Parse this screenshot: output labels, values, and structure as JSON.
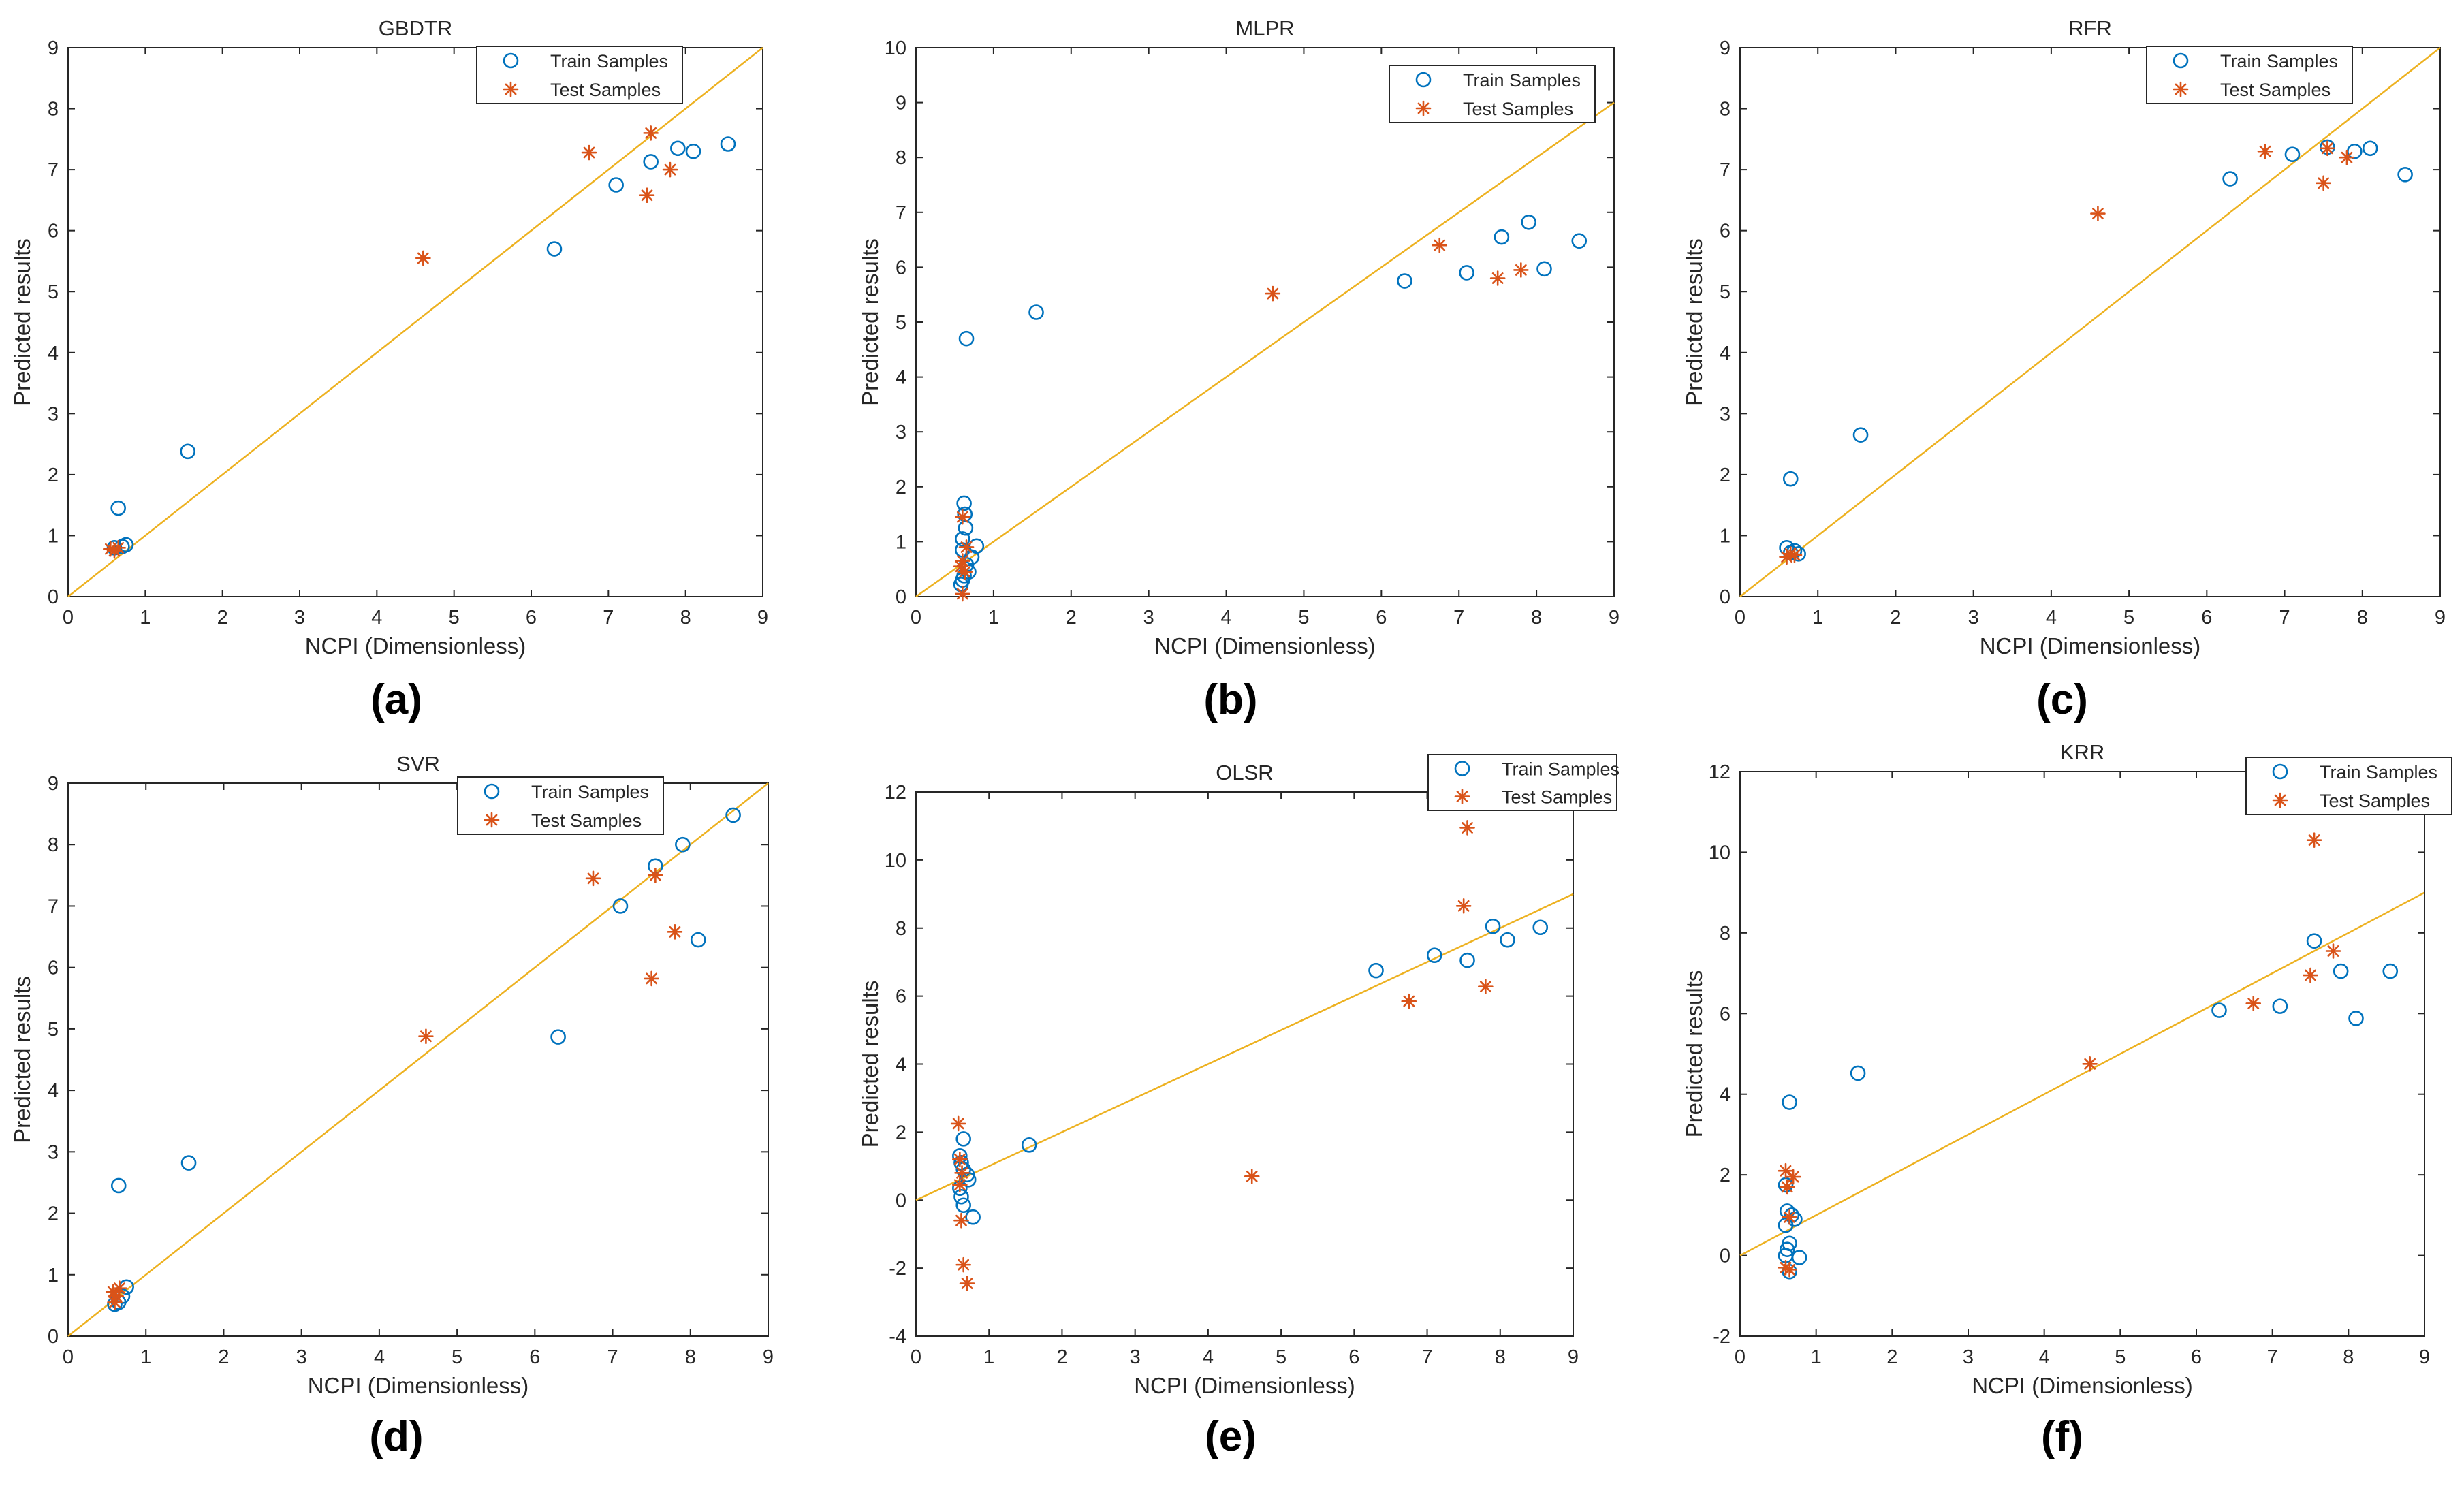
{
  "colors": {
    "train": "#0072BD",
    "test": "#D95319",
    "line": "#EDB120",
    "axis": "#262626"
  },
  "chart_data": [
    {
      "type": "scatter",
      "title": "GBDTR",
      "panel_label": "(a)",
      "xlabel": "NCPI (Dimensionless)",
      "ylabel": "Predicted results",
      "xlim": [
        0,
        9
      ],
      "ylim": [
        0,
        9
      ],
      "xticks": [
        0,
        1,
        2,
        3,
        4,
        5,
        6,
        7,
        8,
        9
      ],
      "yticks": [
        0,
        1,
        2,
        3,
        4,
        5,
        6,
        7,
        8,
        9
      ],
      "legend": [
        "Train Samples",
        "Test Samples"
      ],
      "reference_line": {
        "x": [
          0,
          9
        ],
        "y": [
          0,
          9
        ]
      },
      "series": [
        {
          "name": "Train Samples",
          "marker": "circle",
          "points": [
            [
              0.65,
              1.45
            ],
            [
              1.55,
              2.38
            ],
            [
              0.75,
              0.85
            ],
            [
              0.7,
              0.82
            ],
            [
              0.6,
              0.8
            ],
            [
              6.3,
              5.7
            ],
            [
              7.1,
              6.75
            ],
            [
              7.55,
              7.13
            ],
            [
              7.9,
              7.35
            ],
            [
              8.1,
              7.3
            ],
            [
              8.55,
              7.42
            ]
          ]
        },
        {
          "name": "Test Samples",
          "marker": "asterisk",
          "points": [
            [
              0.55,
              0.78
            ],
            [
              0.6,
              0.75
            ],
            [
              0.65,
              0.8
            ],
            [
              4.6,
              5.55
            ],
            [
              6.75,
              7.28
            ],
            [
              7.5,
              6.58
            ],
            [
              7.55,
              7.6
            ],
            [
              7.8,
              7.0
            ]
          ]
        }
      ]
    },
    {
      "type": "scatter",
      "title": "MLPR",
      "panel_label": "(b)",
      "xlabel": "NCPI (Dimensionless)",
      "ylabel": "Predicted results",
      "xlim": [
        0,
        9
      ],
      "ylim": [
        0,
        10
      ],
      "xticks": [
        0,
        1,
        2,
        3,
        4,
        5,
        6,
        7,
        8,
        9
      ],
      "yticks": [
        0,
        1,
        2,
        3,
        4,
        5,
        6,
        7,
        8,
        9,
        10
      ],
      "legend": [
        "Train Samples",
        "Test Samples"
      ],
      "reference_line": {
        "x": [
          0,
          9
        ],
        "y": [
          0,
          9
        ]
      },
      "series": [
        {
          "name": "Train Samples",
          "marker": "circle",
          "points": [
            [
              0.65,
              4.7
            ],
            [
              1.55,
              5.18
            ],
            [
              0.62,
              1.7
            ],
            [
              0.63,
              1.5
            ],
            [
              0.64,
              1.25
            ],
            [
              0.6,
              1.05
            ],
            [
              0.78,
              0.92
            ],
            [
              0.6,
              0.85
            ],
            [
              0.72,
              0.72
            ],
            [
              0.65,
              0.58
            ],
            [
              0.68,
              0.45
            ],
            [
              0.62,
              0.38
            ],
            [
              0.6,
              0.3
            ],
            [
              0.58,
              0.22
            ],
            [
              6.3,
              5.75
            ],
            [
              7.1,
              5.9
            ],
            [
              7.55,
              6.55
            ],
            [
              7.9,
              6.82
            ],
            [
              8.1,
              5.97
            ],
            [
              8.55,
              6.48
            ]
          ]
        },
        {
          "name": "Test Samples",
          "marker": "asterisk",
          "points": [
            [
              0.6,
              1.45
            ],
            [
              0.65,
              0.9
            ],
            [
              0.6,
              0.65
            ],
            [
              0.58,
              0.55
            ],
            [
              0.63,
              0.45
            ],
            [
              0.6,
              0.05
            ],
            [
              4.6,
              5.52
            ],
            [
              6.75,
              6.4
            ],
            [
              7.5,
              5.8
            ],
            [
              7.8,
              5.95
            ]
          ]
        }
      ]
    },
    {
      "type": "scatter",
      "title": "RFR",
      "panel_label": "(c)",
      "xlabel": "NCPI (Dimensionless)",
      "ylabel": "Predicted results",
      "xlim": [
        0,
        9
      ],
      "ylim": [
        0,
        9
      ],
      "xticks": [
        0,
        1,
        2,
        3,
        4,
        5,
        6,
        7,
        8,
        9
      ],
      "yticks": [
        0,
        1,
        2,
        3,
        4,
        5,
        6,
        7,
        8,
        9
      ],
      "legend": [
        "Train Samples",
        "Test Samples"
      ],
      "reference_line": {
        "x": [
          0,
          9
        ],
        "y": [
          0,
          9
        ]
      },
      "series": [
        {
          "name": "Train Samples",
          "marker": "circle",
          "points": [
            [
              0.65,
              1.93
            ],
            [
              1.55,
              2.65
            ],
            [
              0.6,
              0.8
            ],
            [
              0.75,
              0.7
            ],
            [
              0.7,
              0.75
            ],
            [
              0.65,
              0.72
            ],
            [
              6.3,
              6.85
            ],
            [
              7.1,
              7.25
            ],
            [
              7.55,
              7.37
            ],
            [
              7.9,
              7.3
            ],
            [
              8.1,
              7.35
            ],
            [
              8.55,
              6.92
            ]
          ]
        },
        {
          "name": "Test Samples",
          "marker": "asterisk",
          "points": [
            [
              0.6,
              0.65
            ],
            [
              0.65,
              0.7
            ],
            [
              0.7,
              0.68
            ],
            [
              4.6,
              6.28
            ],
            [
              6.75,
              7.3
            ],
            [
              7.5,
              6.78
            ],
            [
              7.55,
              7.35
            ],
            [
              7.8,
              7.2
            ]
          ]
        }
      ]
    },
    {
      "type": "scatter",
      "title": "SVR",
      "panel_label": "(d)",
      "xlabel": "NCPI (Dimensionless)",
      "ylabel": "Predicted results",
      "xlim": [
        0,
        9
      ],
      "ylim": [
        0,
        9
      ],
      "xticks": [
        0,
        1,
        2,
        3,
        4,
        5,
        6,
        7,
        8,
        9
      ],
      "yticks": [
        0,
        1,
        2,
        3,
        4,
        5,
        6,
        7,
        8,
        9
      ],
      "legend": [
        "Train Samples",
        "Test Samples"
      ],
      "reference_line": {
        "x": [
          0,
          9
        ],
        "y": [
          0,
          9
        ]
      },
      "series": [
        {
          "name": "Train Samples",
          "marker": "circle",
          "points": [
            [
              0.65,
              2.45
            ],
            [
              1.55,
              2.82
            ],
            [
              0.75,
              0.8
            ],
            [
              0.7,
              0.65
            ],
            [
              0.65,
              0.55
            ],
            [
              0.6,
              0.52
            ],
            [
              6.3,
              4.87
            ],
            [
              7.1,
              7.0
            ],
            [
              7.55,
              7.65
            ],
            [
              7.9,
              8.0
            ],
            [
              8.1,
              6.45
            ],
            [
              8.55,
              8.48
            ]
          ]
        },
        {
          "name": "Test Samples",
          "marker": "asterisk",
          "points": [
            [
              0.58,
              0.72
            ],
            [
              0.62,
              0.65
            ],
            [
              0.66,
              0.78
            ],
            [
              0.6,
              0.55
            ],
            [
              4.6,
              4.88
            ],
            [
              6.75,
              7.45
            ],
            [
              7.5,
              5.82
            ],
            [
              7.55,
              7.5
            ],
            [
              7.8,
              6.58
            ]
          ]
        }
      ]
    },
    {
      "type": "scatter",
      "title": "OLSR",
      "panel_label": "(e)",
      "xlabel": "NCPI (Dimensionless)",
      "ylabel": "Predicted results",
      "xlim": [
        0,
        9
      ],
      "ylim": [
        -4,
        12
      ],
      "xticks": [
        0,
        1,
        2,
        3,
        4,
        5,
        6,
        7,
        8,
        9
      ],
      "yticks": [
        -4,
        -2,
        0,
        2,
        4,
        6,
        8,
        10,
        12
      ],
      "legend": [
        "Train Samples",
        "Test Samples"
      ],
      "reference_line": {
        "x": [
          0,
          9
        ],
        "y": [
          0,
          9
        ]
      },
      "series": [
        {
          "name": "Train Samples",
          "marker": "circle",
          "points": [
            [
              0.65,
              1.8
            ],
            [
              1.55,
              1.62
            ],
            [
              0.6,
              1.3
            ],
            [
              0.62,
              1.1
            ],
            [
              0.65,
              0.9
            ],
            [
              0.7,
              0.75
            ],
            [
              0.72,
              0.6
            ],
            [
              0.6,
              0.35
            ],
            [
              0.62,
              0.1
            ],
            [
              0.65,
              -0.15
            ],
            [
              0.78,
              -0.5
            ],
            [
              6.3,
              6.75
            ],
            [
              7.1,
              7.2
            ],
            [
              7.55,
              7.05
            ],
            [
              7.9,
              8.05
            ],
            [
              8.1,
              7.65
            ],
            [
              8.55,
              8.02
            ]
          ]
        },
        {
          "name": "Test Samples",
          "marker": "asterisk",
          "points": [
            [
              0.58,
              2.25
            ],
            [
              0.6,
              1.2
            ],
            [
              0.63,
              0.8
            ],
            [
              0.6,
              0.45
            ],
            [
              0.62,
              -0.6
            ],
            [
              0.65,
              -1.9
            ],
            [
              0.7,
              -2.45
            ],
            [
              4.6,
              0.7
            ],
            [
              6.75,
              5.85
            ],
            [
              7.5,
              8.65
            ],
            [
              7.55,
              10.95
            ],
            [
              7.8,
              6.28
            ]
          ]
        }
      ]
    },
    {
      "type": "scatter",
      "title": "KRR",
      "panel_label": "(f)",
      "xlabel": "NCPI (Dimensionless)",
      "ylabel": "Predicted results",
      "xlim": [
        0,
        9
      ],
      "ylim": [
        -2,
        12
      ],
      "xticks": [
        0,
        1,
        2,
        3,
        4,
        5,
        6,
        7,
        8,
        9
      ],
      "yticks": [
        -2,
        0,
        2,
        4,
        6,
        8,
        10,
        12
      ],
      "legend": [
        "Train Samples",
        "Test Samples"
      ],
      "reference_line": {
        "x": [
          0,
          9
        ],
        "y": [
          0,
          9
        ]
      },
      "series": [
        {
          "name": "Train Samples",
          "marker": "circle",
          "points": [
            [
              0.65,
              3.8
            ],
            [
              1.55,
              4.52
            ],
            [
              0.6,
              1.75
            ],
            [
              0.62,
              1.1
            ],
            [
              0.68,
              1.0
            ],
            [
              0.72,
              0.9
            ],
            [
              0.6,
              0.75
            ],
            [
              0.65,
              0.3
            ],
            [
              0.62,
              0.15
            ],
            [
              0.6,
              0.0
            ],
            [
              0.78,
              -0.05
            ],
            [
              0.65,
              -0.4
            ],
            [
              6.3,
              6.08
            ],
            [
              7.1,
              6.18
            ],
            [
              7.55,
              7.8
            ],
            [
              7.9,
              7.05
            ],
            [
              8.1,
              5.88
            ],
            [
              8.55,
              7.05
            ]
          ]
        },
        {
          "name": "Test Samples",
          "marker": "asterisk",
          "points": [
            [
              0.6,
              2.1
            ],
            [
              0.7,
              1.95
            ],
            [
              0.62,
              1.7
            ],
            [
              0.65,
              0.95
            ],
            [
              0.6,
              -0.3
            ],
            [
              0.65,
              -0.35
            ],
            [
              4.6,
              4.75
            ],
            [
              6.75,
              6.25
            ],
            [
              7.5,
              6.95
            ],
            [
              7.55,
              10.3
            ],
            [
              7.8,
              7.55
            ]
          ]
        }
      ]
    }
  ]
}
